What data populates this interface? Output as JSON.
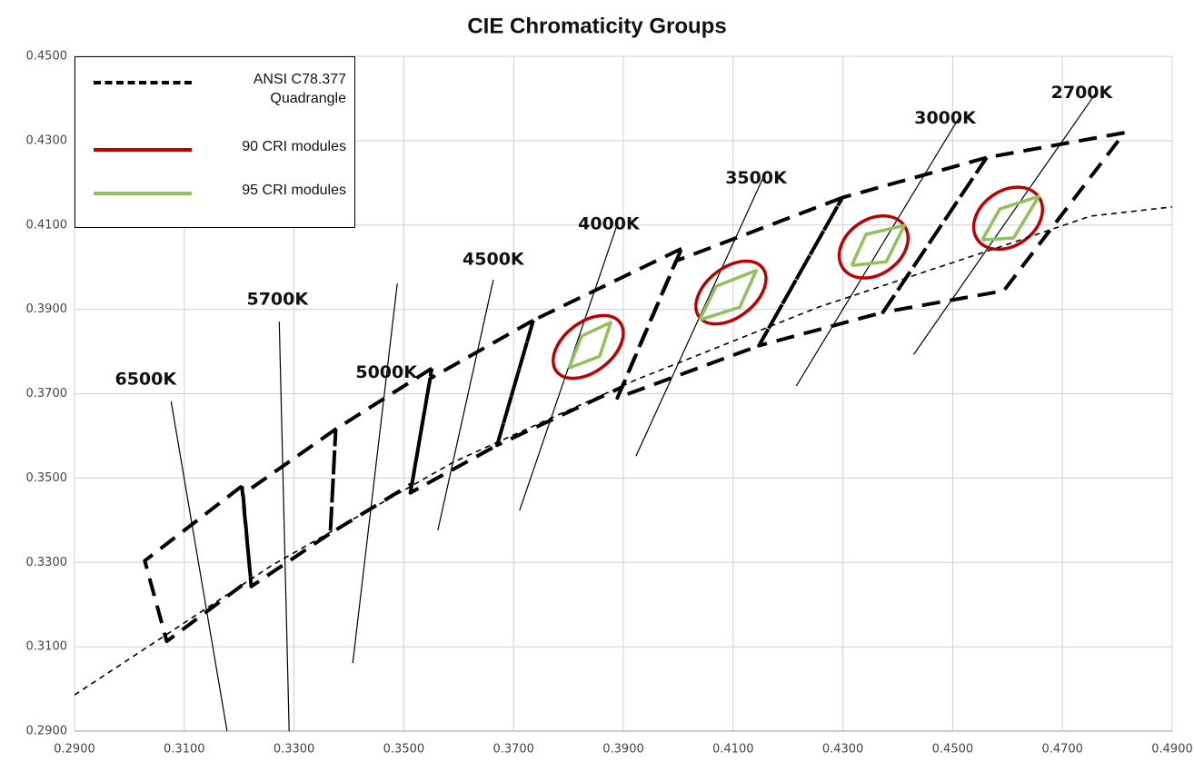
{
  "chart_data": {
    "type": "line",
    "title": "CIE Chromaticity Groups",
    "xlim": [
      0.29,
      0.49
    ],
    "ylim": [
      0.29,
      0.45
    ],
    "xticks": [
      {
        "value": 0.29,
        "label": "0.2900"
      },
      {
        "value": 0.31,
        "label": "0.3100"
      },
      {
        "value": 0.33,
        "label": "0.3300"
      },
      {
        "value": 0.35,
        "label": "0.3500"
      },
      {
        "value": 0.37,
        "label": "0.3700"
      },
      {
        "value": 0.39,
        "label": "0.3900"
      },
      {
        "value": 0.41,
        "label": "0.4100"
      },
      {
        "value": 0.43,
        "label": "0.4300"
      },
      {
        "value": 0.45,
        "label": "0.4500"
      },
      {
        "value": 0.47,
        "label": "0.4700"
      },
      {
        "value": 0.49,
        "label": "0.4900"
      }
    ],
    "yticks": [
      {
        "value": 0.29,
        "label": "0.2900"
      },
      {
        "value": 0.31,
        "label": "0.3100"
      },
      {
        "value": 0.33,
        "label": "0.3300"
      },
      {
        "value": 0.35,
        "label": "0.3500"
      },
      {
        "value": 0.37,
        "label": "0.3700"
      },
      {
        "value": 0.39,
        "label": "0.3900"
      },
      {
        "value": 0.41,
        "label": "0.4100"
      },
      {
        "value": 0.43,
        "label": "0.4300"
      },
      {
        "value": 0.45,
        "label": "0.4500"
      }
    ],
    "grid": true,
    "legend": "upper left",
    "series": [
      {
        "name": "ANSI C78.377 Quadrangle",
        "color": "#000000",
        "dashed": true,
        "x": [
          0.4813,
          0.4562,
          0.4373,
          0.4593,
          0.4813,
          null,
          0.4562,
          0.4299,
          0.4147,
          0.4373,
          0.4562,
          null,
          0.4299,
          0.3996,
          0.3889,
          0.4147,
          0.4299,
          null,
          0.4006,
          0.3736,
          0.367,
          0.3898,
          0.4006,
          null,
          0.3736,
          0.3548,
          0.3512,
          0.367,
          0.3736,
          null,
          0.3551,
          0.3376,
          0.3366,
          0.3515,
          0.3551,
          null,
          0.3376,
          0.3207,
          0.3222,
          0.3366,
          0.3376,
          null,
          0.3205,
          0.3028,
          0.3068,
          0.3221,
          0.3205
        ],
        "values": [
          0.4319,
          0.426,
          0.3893,
          0.3944,
          0.4319,
          null,
          0.426,
          0.4165,
          0.3814,
          0.3893,
          0.426,
          null,
          0.4165,
          0.4015,
          0.369,
          0.3814,
          0.4165,
          null,
          0.4044,
          0.3874,
          0.3578,
          0.3716,
          0.4044,
          null,
          0.3874,
          0.3736,
          0.3465,
          0.3578,
          0.3874,
          null,
          0.376,
          0.3616,
          0.3369,
          0.3487,
          0.376,
          null,
          0.3616,
          0.3462,
          0.3243,
          0.3369,
          0.3616,
          null,
          0.3481,
          0.3304,
          0.3113,
          0.3261,
          0.3481
        ]
      },
      {
        "name": "90 CRI modules",
        "color": "#c00000",
        "x": [
          0.3836,
          0.4096,
          0.4356,
          0.4601
        ],
        "values": [
          0.3811,
          0.394,
          0.4048,
          0.4116
        ],
        "rx": [
          0.0073,
          0.0073,
          0.0068,
          0.0068
        ],
        "ry": [
          0.0045,
          0.0045,
          0.005,
          0.005
        ],
        "angle": [
          -38,
          -38,
          -35,
          -35
        ]
      },
      {
        "name": "95 CRI modules",
        "color": "#92c05a",
        "x": [
          0.3801,
          0.3824,
          0.3877,
          0.3857,
          0.3801,
          null,
          0.4039,
          0.4069,
          0.4142,
          0.4112,
          0.4039,
          null,
          0.4316,
          0.4342,
          0.4412,
          0.4379,
          0.4316,
          null,
          0.4554,
          0.4586,
          0.4657,
          0.4611,
          0.4554
        ],
        "values": [
          0.3761,
          0.3837,
          0.3869,
          0.3789,
          0.3761,
          null,
          0.3875,
          0.3955,
          0.3992,
          0.3905,
          0.3875,
          null,
          0.4004,
          0.4078,
          0.4099,
          0.4013,
          0.4004,
          null,
          0.4065,
          0.4138,
          0.4168,
          0.4069,
          0.4065
        ]
      },
      {
        "color": "#000000",
        "dashed": true,
        "thin": true,
        "x": [
          0.29,
          0.3261,
          0.3592,
          0.3923,
          0.4255,
          0.4586,
          0.4751,
          0.49
        ],
        "values": [
          0.2986,
          0.3294,
          0.3539,
          0.3733,
          0.3905,
          0.4048,
          0.4121,
          0.4143
        ]
      }
    ],
    "cct_lines": [
      {
        "label": "6500K",
        "x": [
          0.3076,
          0.3178
        ],
        "y": [
          0.3682,
          0.29
        ]
      },
      {
        "label": "5700K",
        "x": [
          0.3273,
          0.3291
        ],
        "y": [
          0.3871,
          0.29
        ]
      },
      {
        "label": "5000K",
        "x": [
          0.3488,
          0.3407
        ],
        "y": [
          0.3961,
          0.3061
        ]
      },
      {
        "label": "4500K",
        "x": [
          0.3663,
          0.3562
        ],
        "y": [
          0.397,
          0.3376
        ]
      },
      {
        "label": "4000K",
        "x": [
          0.389,
          0.3711
        ],
        "y": [
          0.4106,
          0.3423
        ]
      },
      {
        "label": "3500K",
        "x": [
          0.4155,
          0.3923
        ],
        "y": [
          0.4213,
          0.3552
        ]
      },
      {
        "label": "3000K",
        "x": [
          0.4511,
          0.4215
        ],
        "y": [
          0.4353,
          0.3718
        ]
      },
      {
        "label": "2700K",
        "x": [
          0.476,
          0.4429
        ],
        "y": [
          0.4411,
          0.3793
        ]
      }
    ]
  }
}
